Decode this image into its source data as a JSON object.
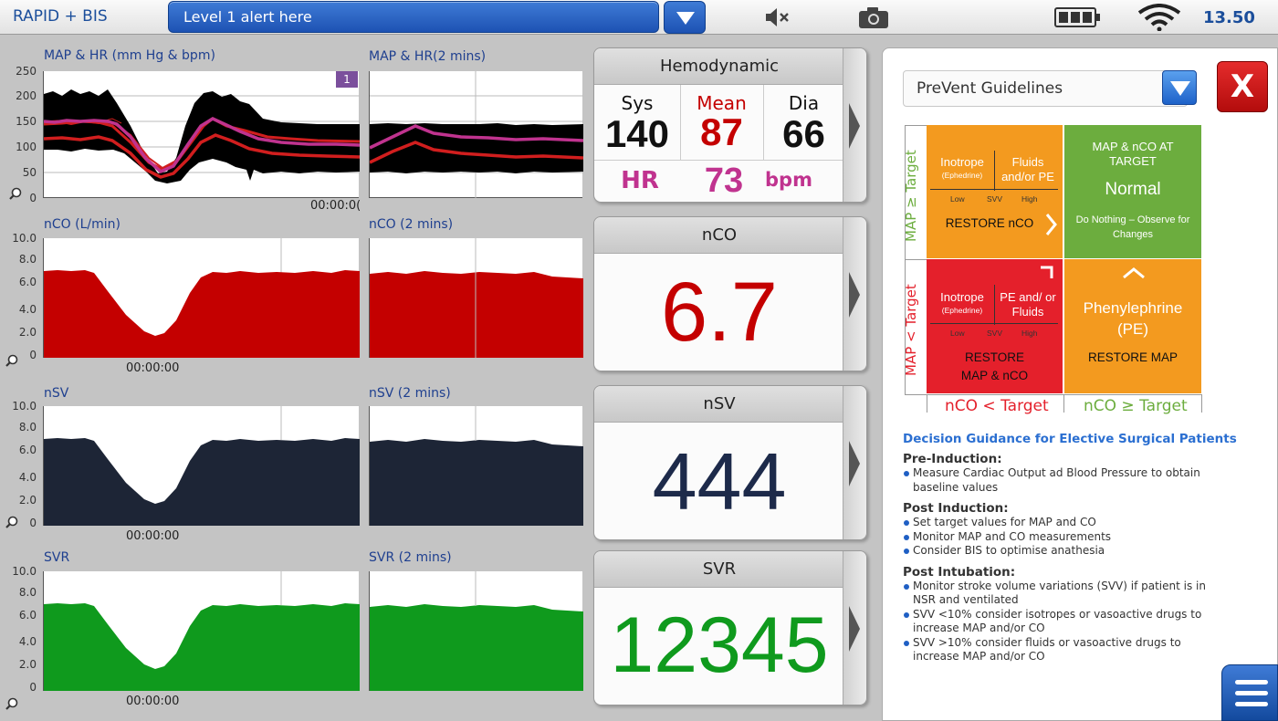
{
  "topbar": {
    "app_title": "RAPID + BIS",
    "alert_text": "Level 1 alert here",
    "clock": "13.50",
    "icons": [
      "mute-icon",
      "camera-icon",
      "battery-icon",
      "wifi-icon",
      "chevron-down-icon"
    ]
  },
  "charts": {
    "map_hr": {
      "title": "MAP & HR (mm Hg & bpm)",
      "yticks": [
        "250",
        "200",
        "150",
        "100",
        "50",
        "0"
      ],
      "timestamp": "00:00:0(",
      "badge": "1"
    },
    "map_hr_2min": {
      "title": "MAP & HR(2 mins)"
    },
    "nco": {
      "title": "nCO (L/min)",
      "yticks": [
        "10.0",
        "8.0",
        "6.0",
        "4.0",
        "2.0",
        "0"
      ],
      "timestamp": "00:00:00"
    },
    "nco_2min": {
      "title": "nCO (2 mins)"
    },
    "nsv": {
      "title": "nSV",
      "yticks": [
        "10.0",
        "8.0",
        "6.0",
        "4.0",
        "2.0",
        "0"
      ],
      "timestamp": "00:00:00"
    },
    "nsv_2min": {
      "title": "nSV (2 mins)"
    },
    "svr": {
      "title": "SVR",
      "yticks": [
        "10.0",
        "8.0",
        "6.0",
        "4.0",
        "2.0",
        "0"
      ],
      "timestamp": "00:00:00"
    },
    "svr_2min": {
      "title": "SVR (2 mins)"
    }
  },
  "panels": {
    "hemodynamic": {
      "title": "Hemodynamic",
      "sys_label": "Sys",
      "sys_value": "140",
      "mean_label": "Mean",
      "mean_value": "87",
      "dia_label": "Dia",
      "dia_value": "66",
      "hr_label": "HR",
      "hr_value": "73",
      "hr_unit": "bpm"
    },
    "nco": {
      "title": "nCO",
      "value": "6.7"
    },
    "nsv": {
      "title": "nSV",
      "value": "444"
    },
    "svr": {
      "title": "SVR",
      "value": "12345"
    }
  },
  "guidelines": {
    "selected": "PreVent Guidelines",
    "close_label": "X",
    "grid": {
      "top_left": {
        "left_head": "Inotrope",
        "left_sub": "(Ephedrine)",
        "right_head": "Fluids and/or PE",
        "scale": [
          "Low",
          "SVV",
          "High"
        ],
        "action": "RESTORE nCO"
      },
      "top_right": {
        "head": "MAP & nCO AT TARGET",
        "main": "Normal",
        "sub": "Do Nothing – Observe for Changes"
      },
      "bottom_left": {
        "left_head": "Inotrope",
        "left_sub": "(Ephedrine)",
        "right_head": "PE and/ or Fluids",
        "scale": [
          "Low",
          "SVV",
          "High"
        ],
        "action": "RESTORE MAP & nCO"
      },
      "bottom_right": {
        "main": "Phenylephrine (PE)",
        "action": "RESTORE MAP"
      },
      "y_top": "MAP ≥ Target",
      "y_bottom": "MAP < Target",
      "x_left": "nCO <  Target",
      "x_right": "nCO ≥ Target"
    },
    "guidance_title": "Decision Guidance for Elective Surgical Patients",
    "sections": [
      {
        "heading": "Pre-Induction:",
        "items": [
          "Measure Cardiac Output ad Blood Pressure to obtain baseline values"
        ]
      },
      {
        "heading": "Post Induction:",
        "items": [
          "Set target values for MAP and CO",
          "Monitor MAP and CO measurements",
          "Consider BIS to optimise anathesia"
        ]
      },
      {
        "heading": "Post Intubation:",
        "items": [
          "Monitor stroke volume variations (SVV) if patient is in NSR and ventilated",
          "SVV <10% consider isotropes or vasoactive drugs to increase MAP and/or CO",
          "SVV >10% consider fluids or vasoactive drugs to increase MAP and/or CO"
        ]
      }
    ]
  },
  "colors": {
    "accent": "#1b4e9b",
    "red": "#c40000",
    "magenta": "#c0338f",
    "navy": "#1d2a4a",
    "green": "#0f9a1d",
    "orange": "#f39a1f",
    "alarm_red": "#e4202b",
    "ok_green": "#6cad3e"
  }
}
